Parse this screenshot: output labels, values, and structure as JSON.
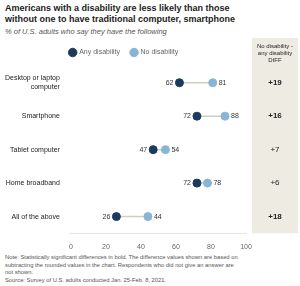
{
  "chart_data": {
    "type": "dot",
    "title": "Americans with a disability are less likely than those\nwithout one to have traditional computer, smartphone",
    "subtitle": "% of U.S. adults who say they have the following",
    "categories": [
      "Desktop or laptop\ncomputer",
      "Smartphone",
      "Tablet computer",
      "Home broadband",
      "All of the above"
    ],
    "series": [
      {
        "name": "Any disability",
        "color": "#1c3a5e",
        "values": [
          62,
          72,
          47,
          72,
          26
        ]
      },
      {
        "name": "No disability",
        "color": "#8ab4d4",
        "values": [
          81,
          88,
          54,
          78,
          44
        ]
      }
    ],
    "diff": {
      "header": "No disability -\nany disability\nDIFF",
      "values": [
        19,
        16,
        7,
        6,
        18
      ],
      "value_labels": [
        "+19",
        "+16",
        "+7",
        "+6",
        "+18"
      ],
      "bold": [
        true,
        true,
        false,
        false,
        true
      ]
    },
    "note": "Note: Statistically significant differences in bold. The difference values shown are based on\nsubtracting the rounded values in the chart. Respondents who did not give an answer are\nnot shown.",
    "source": "Source: Survey of U.S. adults conducted Jan. 25-Feb. 8, 2021.",
    "xlim": [
      0,
      100
    ],
    "xticks": [
      0,
      20,
      40,
      60,
      80,
      100
    ],
    "data_labels": true,
    "grid": false
  }
}
